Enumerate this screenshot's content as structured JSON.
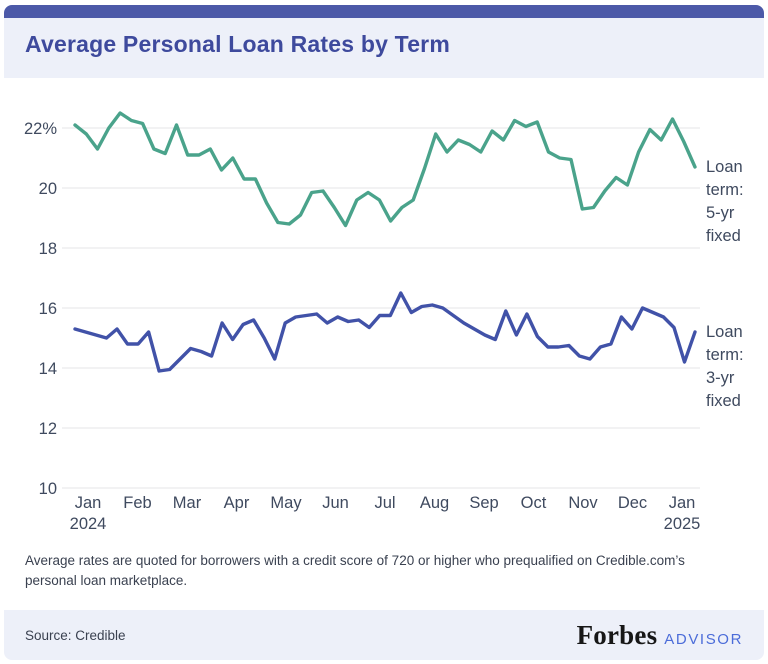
{
  "header": {
    "title": "Average Personal Loan Rates by Term"
  },
  "chart_data": {
    "type": "line",
    "title": "Average Personal Loan Rates by Term",
    "xlabel": "",
    "ylabel": "Rate (%)",
    "ylim": [
      10,
      23.2
    ],
    "grid": true,
    "legend_position": "right-of-line-ends",
    "x_frequency": "weekly, Jan 2024 through late Jan 2025",
    "x_tick_labels": [
      {
        "label": "Jan",
        "year": "2024"
      },
      {
        "label": "Feb"
      },
      {
        "label": "Mar"
      },
      {
        "label": "Apr"
      },
      {
        "label": "May"
      },
      {
        "label": "Jun"
      },
      {
        "label": "Jul"
      },
      {
        "label": "Aug"
      },
      {
        "label": "Sep"
      },
      {
        "label": "Oct"
      },
      {
        "label": "Nov"
      },
      {
        "label": "Dec"
      },
      {
        "label": "Jan",
        "year": "2025"
      }
    ],
    "y_ticks": [
      {
        "value": 22,
        "label": "22%"
      },
      {
        "value": 20,
        "label": "20"
      },
      {
        "value": 18,
        "label": "18"
      },
      {
        "value": 16,
        "label": "16"
      },
      {
        "value": 14,
        "label": "14"
      },
      {
        "value": 12,
        "label": "12"
      },
      {
        "value": 10,
        "label": "10"
      }
    ],
    "series": [
      {
        "name": "Loan term: 5-yr fixed",
        "color": "#4AA38B",
        "values": [
          22.1,
          21.8,
          21.3,
          22.0,
          22.5,
          22.25,
          22.15,
          21.3,
          21.15,
          22.1,
          21.1,
          21.1,
          21.3,
          20.6,
          21.0,
          20.3,
          20.3,
          19.5,
          18.85,
          18.8,
          19.1,
          19.85,
          19.9,
          19.35,
          18.75,
          19.6,
          19.85,
          19.6,
          18.9,
          19.35,
          19.6,
          20.65,
          21.8,
          21.2,
          21.6,
          21.45,
          21.2,
          21.9,
          21.6,
          22.25,
          22.05,
          22.2,
          21.2,
          21.0,
          20.95,
          19.3,
          19.35,
          19.9,
          20.35,
          20.1,
          21.2,
          21.95,
          21.6,
          22.3,
          21.55,
          20.7
        ]
      },
      {
        "name": "Loan term: 3-yr fixed",
        "color": "#4152A8",
        "values": [
          15.3,
          15.2,
          15.1,
          15.0,
          15.3,
          14.8,
          14.8,
          15.2,
          13.9,
          13.95,
          14.3,
          14.65,
          14.55,
          14.4,
          15.5,
          14.95,
          15.45,
          15.6,
          15.0,
          14.3,
          15.5,
          15.7,
          15.75,
          15.8,
          15.5,
          15.7,
          15.55,
          15.6,
          15.35,
          15.75,
          15.75,
          16.5,
          15.85,
          16.05,
          16.1,
          16.0,
          15.75,
          15.5,
          15.3,
          15.1,
          14.95,
          15.9,
          15.1,
          15.8,
          15.05,
          14.7,
          14.7,
          14.75,
          14.4,
          14.3,
          14.7,
          14.8,
          15.7,
          15.3,
          16.0,
          15.85,
          15.7,
          15.35,
          14.2,
          15.2
        ]
      }
    ]
  },
  "footnote": "Average rates are quoted for borrowers with a credit score of 720 or higher who prequalified on Credible.com’s personal loan marketplace.",
  "footer": {
    "source": "Source: Credible",
    "brand": "Forbes",
    "brand_suffix": "ADVISOR"
  },
  "colors": {
    "accent_bar": "#4C59A8",
    "header_bg": "#EDF0F9",
    "footer_bg": "#EDF0F9",
    "title_text": "#3E4A9D",
    "axis_text": "#3F4A5F",
    "grid_line": "#E9E9EC",
    "series_5yr": "#4AA38B",
    "series_3yr": "#4152A8",
    "footnote_text": "#3A4150",
    "forbes_text": "#171717",
    "advisor_text": "#4B6CD9"
  }
}
